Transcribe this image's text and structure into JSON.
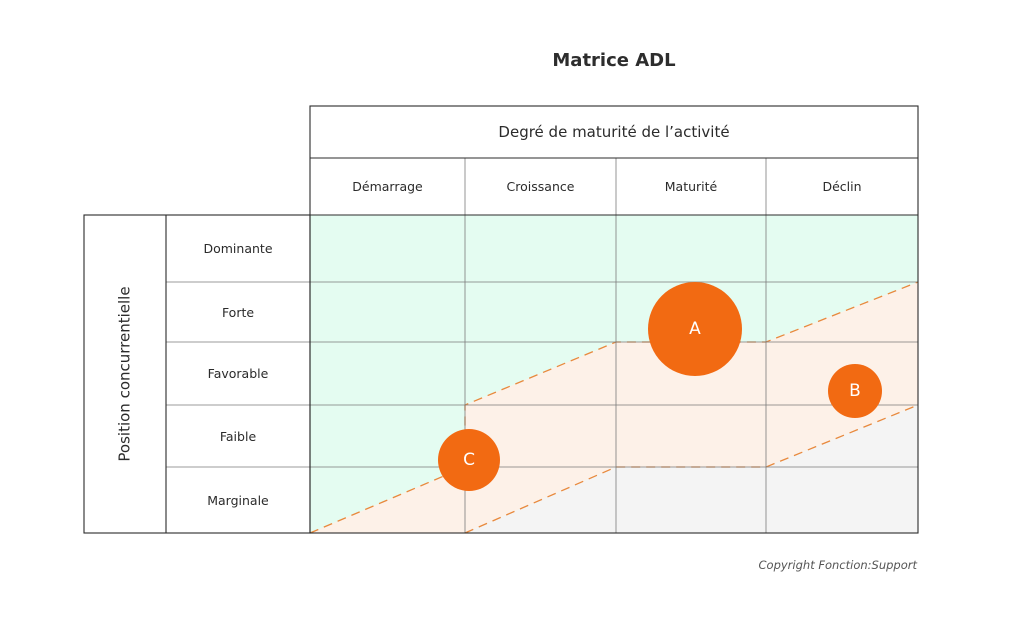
{
  "title": "Matrice ADL",
  "column_header": "Degré de maturité de l’activité",
  "columns": [
    "Démarrage",
    "Croissance",
    "Maturité",
    "Déclin"
  ],
  "row_header": "Position concurrentielle",
  "rows": [
    "Dominante",
    "Forte",
    "Favorable",
    "Faible",
    "Marginale"
  ],
  "bubbles": [
    {
      "label": "A",
      "column": "Maturité",
      "row": "Forte"
    },
    {
      "label": "B",
      "column": "Déclin",
      "row": "Favorable"
    },
    {
      "label": "C",
      "column": "Démarrage",
      "row": "Faible"
    }
  ],
  "copyright": "Copyright Fonction:Support",
  "colors": {
    "zone_green": "#e4fcf1",
    "zone_peach": "#fdf1e8",
    "zone_grey": "#f4f4f4",
    "bubble": "#f26a12",
    "dashed_line": "#e8893d",
    "grid": "#2b2b2b"
  }
}
